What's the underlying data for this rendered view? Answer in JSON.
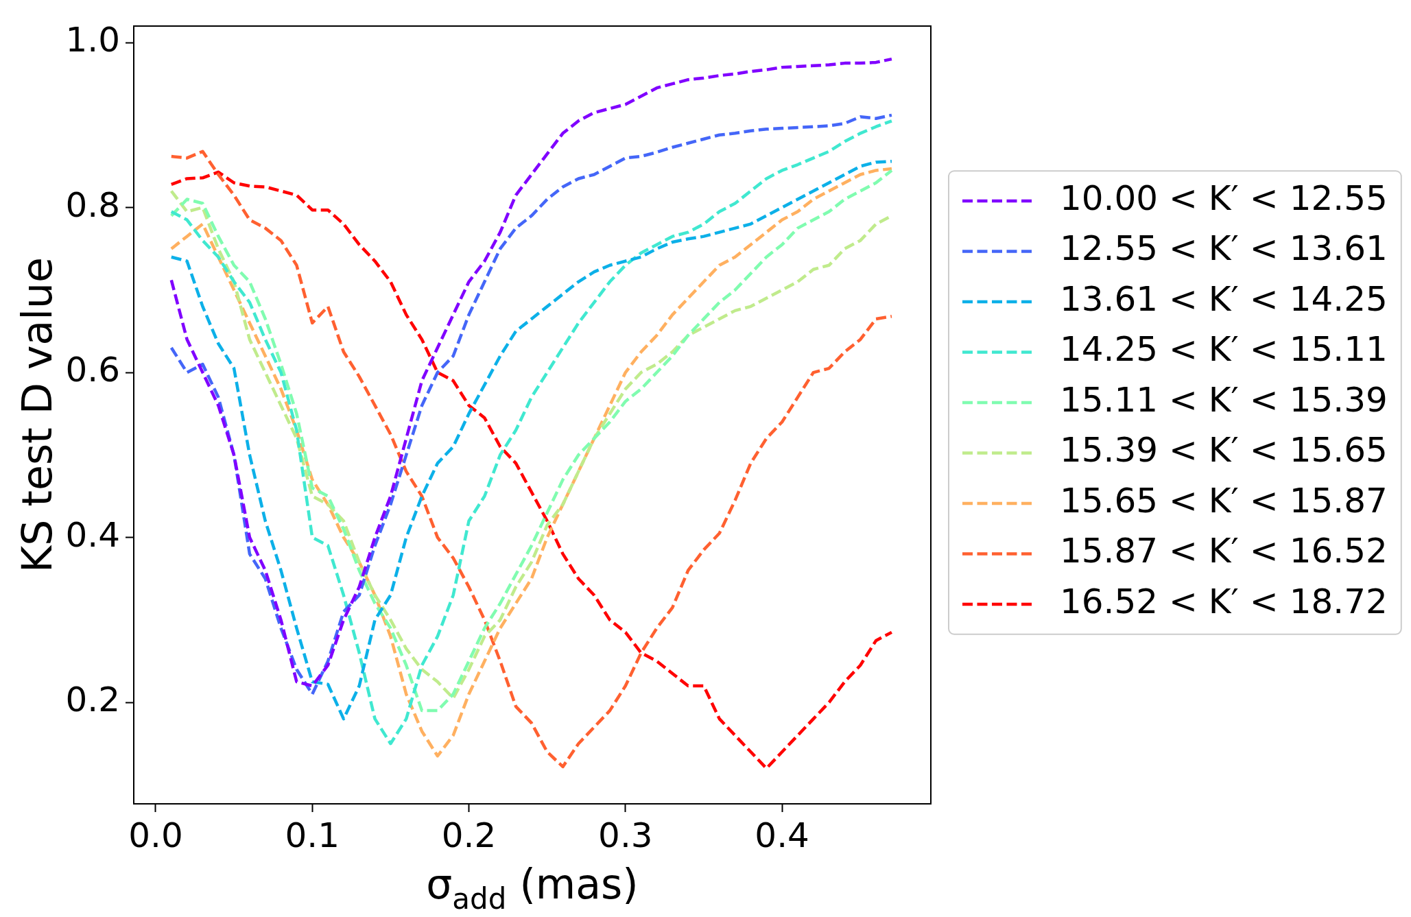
{
  "chart_data": {
    "type": "line",
    "xlabel": "σ$_{add}$ (mas)",
    "ylabel": "KS test D value",
    "x": [
      0.01,
      0.02,
      0.03,
      0.04,
      0.05,
      0.06,
      0.07,
      0.08,
      0.09,
      0.1,
      0.11,
      0.12,
      0.13,
      0.14,
      0.15,
      0.16,
      0.17,
      0.18,
      0.19,
      0.2,
      0.21,
      0.22,
      0.23,
      0.24,
      0.25,
      0.26,
      0.27,
      0.28,
      0.29,
      0.3,
      0.31,
      0.32,
      0.33,
      0.34,
      0.35,
      0.36,
      0.37,
      0.38,
      0.39,
      0.4,
      0.41,
      0.42,
      0.43,
      0.44,
      0.45,
      0.46,
      0.47
    ],
    "xlim": [
      -0.014,
      0.495
    ],
    "ylim": [
      0.077,
      1.02
    ],
    "xticks": [
      {
        "value": 0,
        "label": "0.0"
      },
      0.1,
      0.2,
      0.3,
      0.4
    ],
    "yticks": [
      0.2,
      0.4,
      0.6,
      0.8,
      {
        "value": 1,
        "label": "1.0"
      }
    ],
    "grid": false,
    "legend": "right",
    "marker": "none",
    "line_style": "dashed",
    "series": [
      {
        "name": "10.00 < K′ < 12.55",
        "color": "#8000ff",
        "values": [
          0.712,
          0.64,
          0.6,
          0.56,
          0.5,
          0.4,
          0.36,
          0.3,
          0.225,
          0.22,
          0.245,
          0.3,
          0.34,
          0.4,
          0.45,
          0.52,
          0.59,
          0.63,
          0.67,
          0.71,
          0.735,
          0.77,
          0.815,
          0.84,
          0.865,
          0.89,
          0.905,
          0.915,
          0.92,
          0.925,
          0.935,
          0.945,
          0.95,
          0.955,
          0.957,
          0.96,
          0.962,
          0.965,
          0.967,
          0.97,
          0.971,
          0.972,
          0.973,
          0.975,
          0.975,
          0.976,
          0.98
        ]
      },
      {
        "name": "12.55 < K′ < 13.61",
        "color": "#4466f8",
        "values": [
          0.63,
          0.6,
          0.61,
          0.57,
          0.5,
          0.38,
          0.35,
          0.29,
          0.24,
          0.21,
          0.25,
          0.31,
          0.33,
          0.39,
          0.44,
          0.5,
          0.56,
          0.6,
          0.62,
          0.67,
          0.71,
          0.75,
          0.775,
          0.79,
          0.81,
          0.825,
          0.835,
          0.84,
          0.85,
          0.86,
          0.862,
          0.867,
          0.873,
          0.878,
          0.883,
          0.888,
          0.89,
          0.893,
          0.895,
          0.896,
          0.897,
          0.898,
          0.899,
          0.902,
          0.91,
          0.908,
          0.912
        ]
      },
      {
        "name": "13.61 < K′ < 14.25",
        "color": "#0cb0e8",
        "values": [
          0.74,
          0.735,
          0.68,
          0.635,
          0.605,
          0.5,
          0.42,
          0.36,
          0.29,
          0.225,
          0.222,
          0.18,
          0.22,
          0.3,
          0.33,
          0.4,
          0.45,
          0.49,
          0.51,
          0.55,
          0.585,
          0.62,
          0.65,
          0.665,
          0.68,
          0.695,
          0.71,
          0.722,
          0.73,
          0.735,
          0.74,
          0.75,
          0.758,
          0.762,
          0.765,
          0.77,
          0.775,
          0.78,
          0.79,
          0.8,
          0.81,
          0.82,
          0.83,
          0.84,
          0.85,
          0.855,
          0.856
        ]
      },
      {
        "name": "14.25 < K′ < 15.11",
        "color": "#40e8d0",
        "values": [
          0.795,
          0.785,
          0.76,
          0.74,
          0.71,
          0.685,
          0.64,
          0.6,
          0.53,
          0.4,
          0.39,
          0.33,
          0.26,
          0.18,
          0.15,
          0.18,
          0.245,
          0.28,
          0.33,
          0.42,
          0.45,
          0.5,
          0.53,
          0.57,
          0.6,
          0.63,
          0.66,
          0.685,
          0.71,
          0.73,
          0.745,
          0.755,
          0.765,
          0.77,
          0.78,
          0.795,
          0.805,
          0.82,
          0.835,
          0.845,
          0.852,
          0.86,
          0.868,
          0.88,
          0.89,
          0.898,
          0.905
        ]
      },
      {
        "name": "15.11 < K′ < 15.39",
        "color": "#80fcb0",
        "values": [
          0.79,
          0.81,
          0.805,
          0.765,
          0.73,
          0.71,
          0.665,
          0.61,
          0.55,
          0.46,
          0.45,
          0.41,
          0.36,
          0.32,
          0.29,
          0.245,
          0.19,
          0.19,
          0.21,
          0.25,
          0.29,
          0.32,
          0.355,
          0.39,
          0.43,
          0.47,
          0.5,
          0.52,
          0.54,
          0.565,
          0.58,
          0.6,
          0.62,
          0.645,
          0.665,
          0.685,
          0.7,
          0.72,
          0.74,
          0.755,
          0.775,
          0.785,
          0.795,
          0.81,
          0.82,
          0.83,
          0.845
        ]
      },
      {
        "name": "15.39 < K′ < 15.65",
        "color": "#c0eb8c",
        "values": [
          0.82,
          0.795,
          0.8,
          0.75,
          0.71,
          0.64,
          0.6,
          0.56,
          0.52,
          0.45,
          0.44,
          0.42,
          0.37,
          0.33,
          0.3,
          0.265,
          0.24,
          0.225,
          0.205,
          0.24,
          0.28,
          0.3,
          0.34,
          0.37,
          0.415,
          0.44,
          0.48,
          0.52,
          0.55,
          0.58,
          0.6,
          0.61,
          0.625,
          0.645,
          0.655,
          0.665,
          0.675,
          0.68,
          0.69,
          0.7,
          0.71,
          0.725,
          0.73,
          0.75,
          0.76,
          0.78,
          0.79
        ]
      },
      {
        "name": "15.65 < K′ < 15.87",
        "color": "#ffb060",
        "values": [
          0.75,
          0.765,
          0.78,
          0.74,
          0.7,
          0.66,
          0.62,
          0.58,
          0.53,
          0.47,
          0.44,
          0.4,
          0.37,
          0.33,
          0.28,
          0.21,
          0.165,
          0.135,
          0.16,
          0.21,
          0.25,
          0.29,
          0.32,
          0.35,
          0.4,
          0.44,
          0.48,
          0.52,
          0.56,
          0.6,
          0.625,
          0.645,
          0.67,
          0.69,
          0.71,
          0.73,
          0.74,
          0.755,
          0.77,
          0.785,
          0.795,
          0.81,
          0.82,
          0.83,
          0.84,
          0.845,
          0.847
        ]
      },
      {
        "name": "15.87 < K′ < 16.52",
        "color": "#ff6030",
        "values": [
          0.862,
          0.86,
          0.868,
          0.84,
          0.815,
          0.785,
          0.775,
          0.76,
          0.73,
          0.66,
          0.68,
          0.625,
          0.595,
          0.56,
          0.525,
          0.48,
          0.45,
          0.4,
          0.375,
          0.34,
          0.3,
          0.25,
          0.195,
          0.175,
          0.14,
          0.122,
          0.15,
          0.17,
          0.19,
          0.22,
          0.26,
          0.29,
          0.315,
          0.36,
          0.385,
          0.405,
          0.445,
          0.49,
          0.52,
          0.54,
          0.57,
          0.6,
          0.605,
          0.625,
          0.64,
          0.665,
          0.668
        ]
      },
      {
        "name": "16.52 < K′ < 18.72",
        "color": "#ff0000",
        "values": [
          0.828,
          0.835,
          0.836,
          0.843,
          0.83,
          0.826,
          0.825,
          0.82,
          0.815,
          0.797,
          0.797,
          0.78,
          0.755,
          0.735,
          0.71,
          0.67,
          0.64,
          0.6,
          0.59,
          0.56,
          0.545,
          0.51,
          0.49,
          0.455,
          0.42,
          0.38,
          0.35,
          0.33,
          0.3,
          0.285,
          0.26,
          0.25,
          0.235,
          0.22,
          0.22,
          0.18,
          0.16,
          0.14,
          0.12,
          0.14,
          0.16,
          0.18,
          0.2,
          0.225,
          0.245,
          0.275,
          0.285
        ]
      }
    ]
  }
}
